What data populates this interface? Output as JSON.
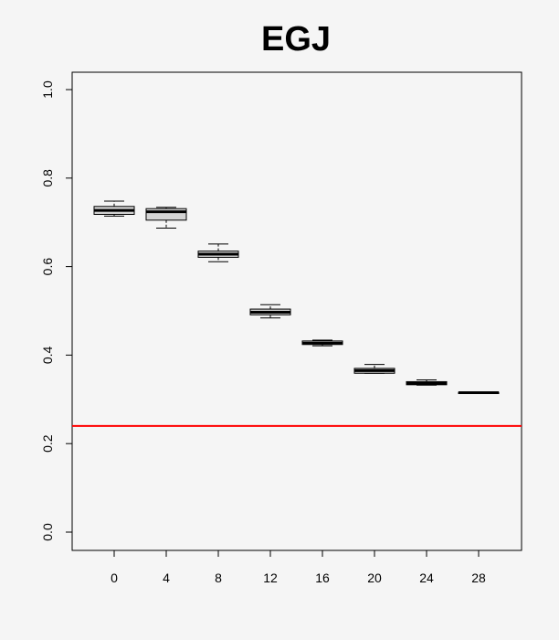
{
  "chart_data": {
    "type": "boxplot",
    "title": "EGJ",
    "xlabel": "",
    "ylabel": "",
    "categories": [
      "0",
      "4",
      "8",
      "12",
      "16",
      "20",
      "24",
      "28"
    ],
    "ylim": [
      0.0,
      1.0
    ],
    "yticks": [
      "0.0",
      "0.2",
      "0.4",
      "0.6",
      "0.8",
      "1.0"
    ],
    "boxes": [
      {
        "category": "0",
        "min": 0.714,
        "q1": 0.718,
        "median": 0.727,
        "q3": 0.736,
        "max": 0.748
      },
      {
        "category": "4",
        "min": 0.687,
        "q1": 0.705,
        "median": 0.724,
        "q3": 0.731,
        "max": 0.734
      },
      {
        "category": "8",
        "min": 0.611,
        "q1": 0.621,
        "median": 0.628,
        "q3": 0.635,
        "max": 0.651
      },
      {
        "category": "12",
        "min": 0.484,
        "q1": 0.491,
        "median": 0.497,
        "q3": 0.504,
        "max": 0.514
      },
      {
        "category": "16",
        "min": 0.421,
        "q1": 0.424,
        "median": 0.427,
        "q3": 0.432,
        "max": 0.434
      },
      {
        "category": "20",
        "min": 0.359,
        "q1": 0.359,
        "median": 0.365,
        "q3": 0.37,
        "max": 0.379
      },
      {
        "category": "24",
        "min": 0.332,
        "q1": 0.333,
        "median": 0.336,
        "q3": 0.34,
        "max": 0.344
      },
      {
        "category": "28",
        "min": 0.313,
        "q1": 0.313,
        "median": 0.315,
        "q3": 0.316,
        "max": 0.316
      }
    ],
    "reference_line": {
      "y": 0.24,
      "color": "#ff0000"
    },
    "box_fill": "#d3d3d3",
    "grid": false
  }
}
